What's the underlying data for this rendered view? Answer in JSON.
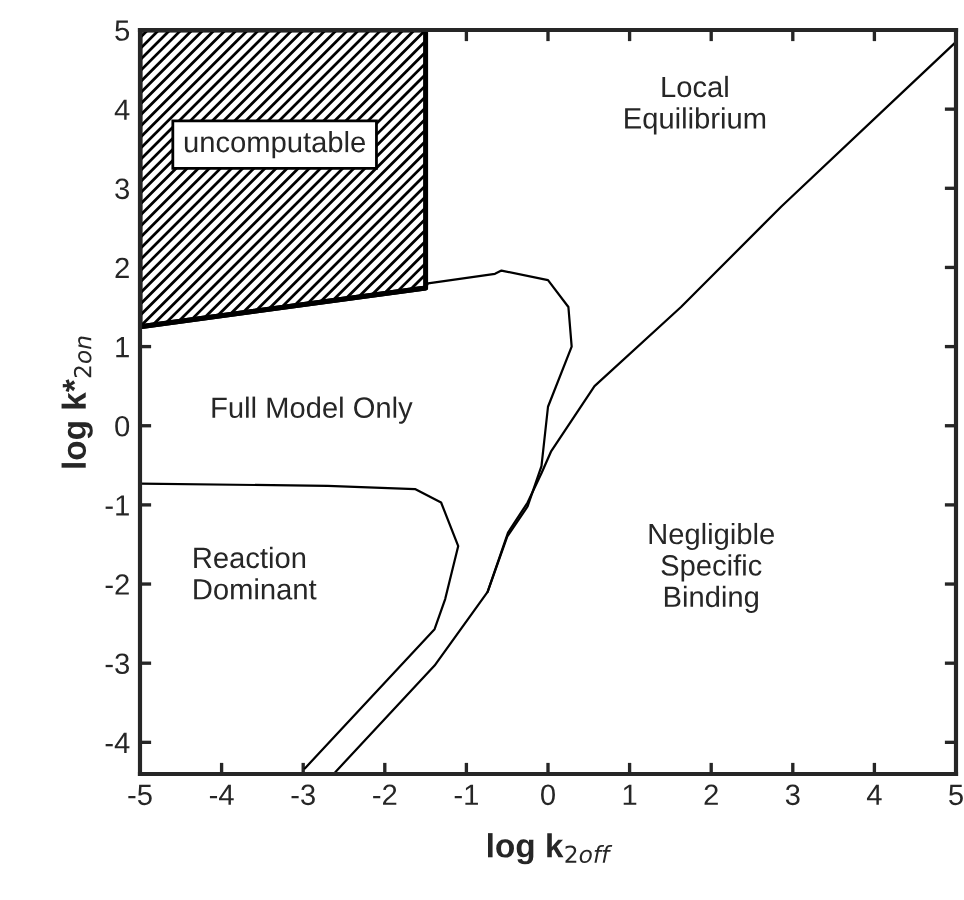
{
  "chart_data": {
    "type": "line",
    "xlabel": "log k$_{2off}$",
    "ylabel": "log k*$_{2on}$",
    "xlim": [
      -5,
      5
    ],
    "ylim": [
      -4.4,
      5
    ],
    "xticks": [
      -5,
      -4,
      -3,
      -2,
      -1,
      0,
      1,
      2,
      3,
      4,
      5
    ],
    "yticks": [
      -4,
      -3,
      -2,
      -1,
      0,
      1,
      2,
      3,
      4,
      5
    ],
    "grid": false,
    "legend": false,
    "series": [
      {
        "color": "#000000",
        "x": [
          -5,
          -1.5
        ],
        "values": [
          1.25,
          1.74
        ],
        "lower": [
          1.25,
          1.74
        ],
        "upper": [
          5,
          5
        ]
      },
      {
        "color": "#000000",
        "x": [
          -2.61,
          -1.39,
          -0.74,
          -0.49,
          -0.25,
          -0.08,
          0.04,
          0.57,
          1.63,
          2.86,
          4.33,
          5.0
        ],
        "values": [
          -4.38,
          -3.03,
          -2.1,
          -1.35,
          -0.97,
          -0.6,
          -0.32,
          0.5,
          1.5,
          2.77,
          4.2,
          4.85
        ]
      },
      {
        "color": "#000000",
        "x": [
          -5,
          -2.7,
          -1.63,
          -1.31,
          -1.1,
          -1.26,
          -1.39,
          -2.98
        ],
        "values": [
          -0.73,
          -0.76,
          -0.8,
          -0.97,
          -1.52,
          -2.19,
          -2.57,
          -4.33
        ]
      },
      {
        "color": "#000000",
        "x": [
          -1.5,
          -1.47,
          -0.65,
          -0.57,
          0.0,
          0.25,
          0.29,
          0.0,
          -0.08,
          -0.25,
          -0.5,
          -0.74
        ],
        "values": [
          1.74,
          1.8,
          1.92,
          1.96,
          1.84,
          1.5,
          1.0,
          0.24,
          -0.51,
          -1.02,
          -1.4,
          -2.1
        ]
      }
    ],
    "annotations": [
      "uncomputable",
      "Local\nEquilibrium",
      "Full Model Only",
      "Reaction\nDominant",
      "Negligible\nSpecific\nBinding"
    ]
  }
}
